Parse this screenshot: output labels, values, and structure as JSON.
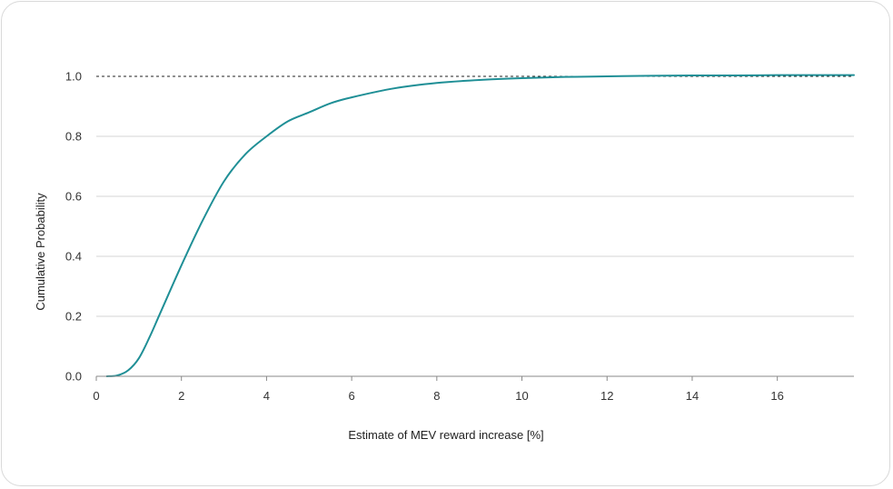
{
  "chart_data": {
    "type": "line",
    "title": "",
    "xlabel": "Estimate of MEV reward increase [%]",
    "ylabel": "Cumulative Probability",
    "xlim": [
      0,
      17.8
    ],
    "ylim": [
      0,
      1.0
    ],
    "xticks": [
      "0",
      "2",
      "4",
      "6",
      "8",
      "10",
      "12",
      "14",
      "16"
    ],
    "yticks": [
      "0.0",
      "0.2",
      "0.4",
      "0.6",
      "0.8",
      "1.0"
    ],
    "grid": "horizontal",
    "reference_line": {
      "y": 1.0,
      "style": "dashed"
    },
    "series": [
      {
        "color": "#1f8f96",
        "x": [
          0.25,
          0.5,
          0.75,
          1.0,
          1.25,
          1.5,
          2.0,
          2.5,
          3.0,
          3.5,
          4.0,
          4.5,
          5.0,
          5.5,
          6.0,
          7.0,
          8.0,
          9.0,
          10.0,
          11.0,
          12.0,
          13.0,
          14.0,
          15.0,
          16.0,
          17.0,
          17.8
        ],
        "y": [
          0.0,
          0.003,
          0.02,
          0.06,
          0.13,
          0.21,
          0.37,
          0.52,
          0.65,
          0.74,
          0.8,
          0.85,
          0.88,
          0.91,
          0.93,
          0.96,
          0.978,
          0.988,
          0.994,
          0.998,
          1.0,
          1.002,
          1.003,
          1.003,
          1.004,
          1.004,
          1.004
        ]
      }
    ]
  }
}
